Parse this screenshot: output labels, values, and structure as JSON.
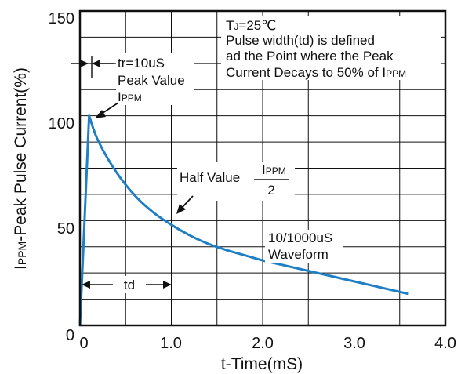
{
  "chart_data": {
    "type": "line",
    "xlabel": "t-Time(mS)",
    "ylabel": "IPPM-Peak Pulse Current(%)",
    "ylabel_sub": "PPM",
    "ylabel_rest": "-Peak Pulse Current(%)",
    "ylabel_lead": "I",
    "xlim": [
      0,
      4.0
    ],
    "ylim": [
      0,
      150
    ],
    "x_ticks": [
      "0",
      "1.0",
      "2.0",
      "3.0",
      "4.0"
    ],
    "y_ticks": [
      "0",
      "50",
      "100",
      "150"
    ],
    "grid": true,
    "series": [
      {
        "color": "#1f7fc4",
        "x": [
          0,
          0.1,
          0.2,
          0.4,
          0.6,
          0.8,
          1.0,
          1.2,
          1.4,
          1.6,
          1.8,
          2.0,
          2.2,
          2.4,
          2.6,
          2.8,
          3.0,
          3.2,
          3.4,
          3.6
        ],
        "y": [
          0,
          100,
          88,
          73,
          62,
          54,
          48,
          43,
          39,
          36,
          33.5,
          31,
          29,
          27,
          25,
          23,
          21,
          19,
          17,
          15
        ]
      }
    ],
    "annotations": {
      "tj": {
        "lead": "T",
        "sub": "J",
        "rest": "=25℃"
      },
      "pulse_def_line1": "Pulse width(td) is defined",
      "pulse_def_line2": "ad the Point where the Peak",
      "pulse_def_line3_lead": "Current Decays to 50% of I",
      "pulse_def_line3_sub": "PPM",
      "tr_label": "tr=10uS",
      "peak_label": "Peak Value",
      "peak_sym_lead": "I",
      "peak_sym_sub": "PPM",
      "half_label": "Half Value",
      "half_num_lead": "I",
      "half_num_sub": "PPM",
      "half_den": "2",
      "waveform_line1": "10/1000uS",
      "waveform_line2": "Waveform",
      "td_label": "td"
    }
  }
}
